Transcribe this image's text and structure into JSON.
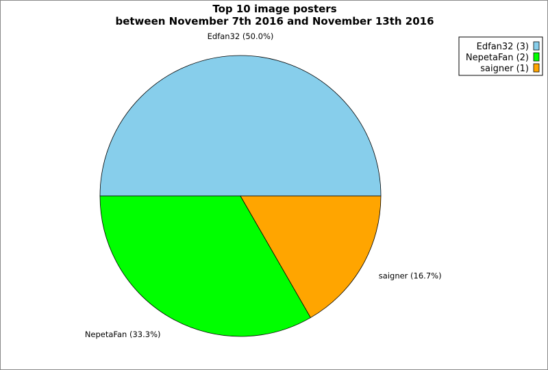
{
  "chart_data": {
    "type": "pie",
    "title": "Top 10 image posters",
    "subtitle": "between November 7th 2016 and November 13th 2016",
    "slices": [
      {
        "name": "Edfan32",
        "value": 3,
        "percent": 50.0,
        "label": "Edfan32 (50.0%)",
        "legend": "Edfan32 (3)",
        "color": "#87ceeb"
      },
      {
        "name": "NepetaFan",
        "value": 2,
        "percent": 33.3,
        "label": "NepetaFan (33.3%)",
        "legend": "NepetaFan (2)",
        "color": "#00ff00"
      },
      {
        "name": "saigner",
        "value": 1,
        "percent": 16.7,
        "label": "saigner (16.7%)",
        "legend": "saigner (1)",
        "color": "#ffa500"
      }
    ],
    "start_angle_deg": 0,
    "direction": "counterclockwise",
    "legend_position": "top-right"
  }
}
